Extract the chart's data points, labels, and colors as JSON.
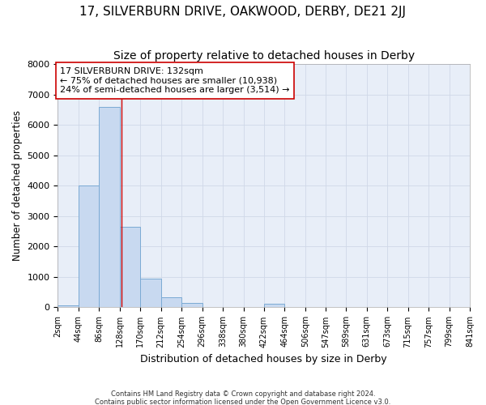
{
  "title": "17, SILVERBURN DRIVE, OAKWOOD, DERBY, DE21 2JJ",
  "subtitle": "Size of property relative to detached houses in Derby",
  "xlabel": "Distribution of detached houses by size in Derby",
  "ylabel": "Number of detached properties",
  "footer_line1": "Contains HM Land Registry data © Crown copyright and database right 2024.",
  "footer_line2": "Contains public sector information licensed under the Open Government Licence v3.0.",
  "annotation_line1": "17 SILVERBURN DRIVE: 132sqm",
  "annotation_line2": "← 75% of detached houses are smaller (10,938)",
  "annotation_line3": "24% of semi-detached houses are larger (3,514) →",
  "property_size": 132,
  "bin_edges": [
    2,
    44,
    86,
    128,
    170,
    212,
    254,
    296,
    338,
    380,
    422,
    464,
    506,
    547,
    589,
    631,
    673,
    715,
    757,
    799,
    841
  ],
  "bin_counts": [
    55,
    4000,
    6600,
    2650,
    950,
    330,
    150,
    0,
    0,
    0,
    110,
    0,
    0,
    0,
    0,
    0,
    0,
    0,
    0,
    0
  ],
  "bar_color": "#c8d9f0",
  "bar_edge_color": "#7baad4",
  "vline_color": "#cc0000",
  "grid_color": "#d0d8e8",
  "bg_color": "#e8eef8",
  "fig_color": "#ffffff",
  "ylim_max": 8000,
  "yticks": [
    0,
    1000,
    2000,
    3000,
    4000,
    5000,
    6000,
    7000,
    8000
  ],
  "title_fontsize": 11,
  "subtitle_fontsize": 10
}
